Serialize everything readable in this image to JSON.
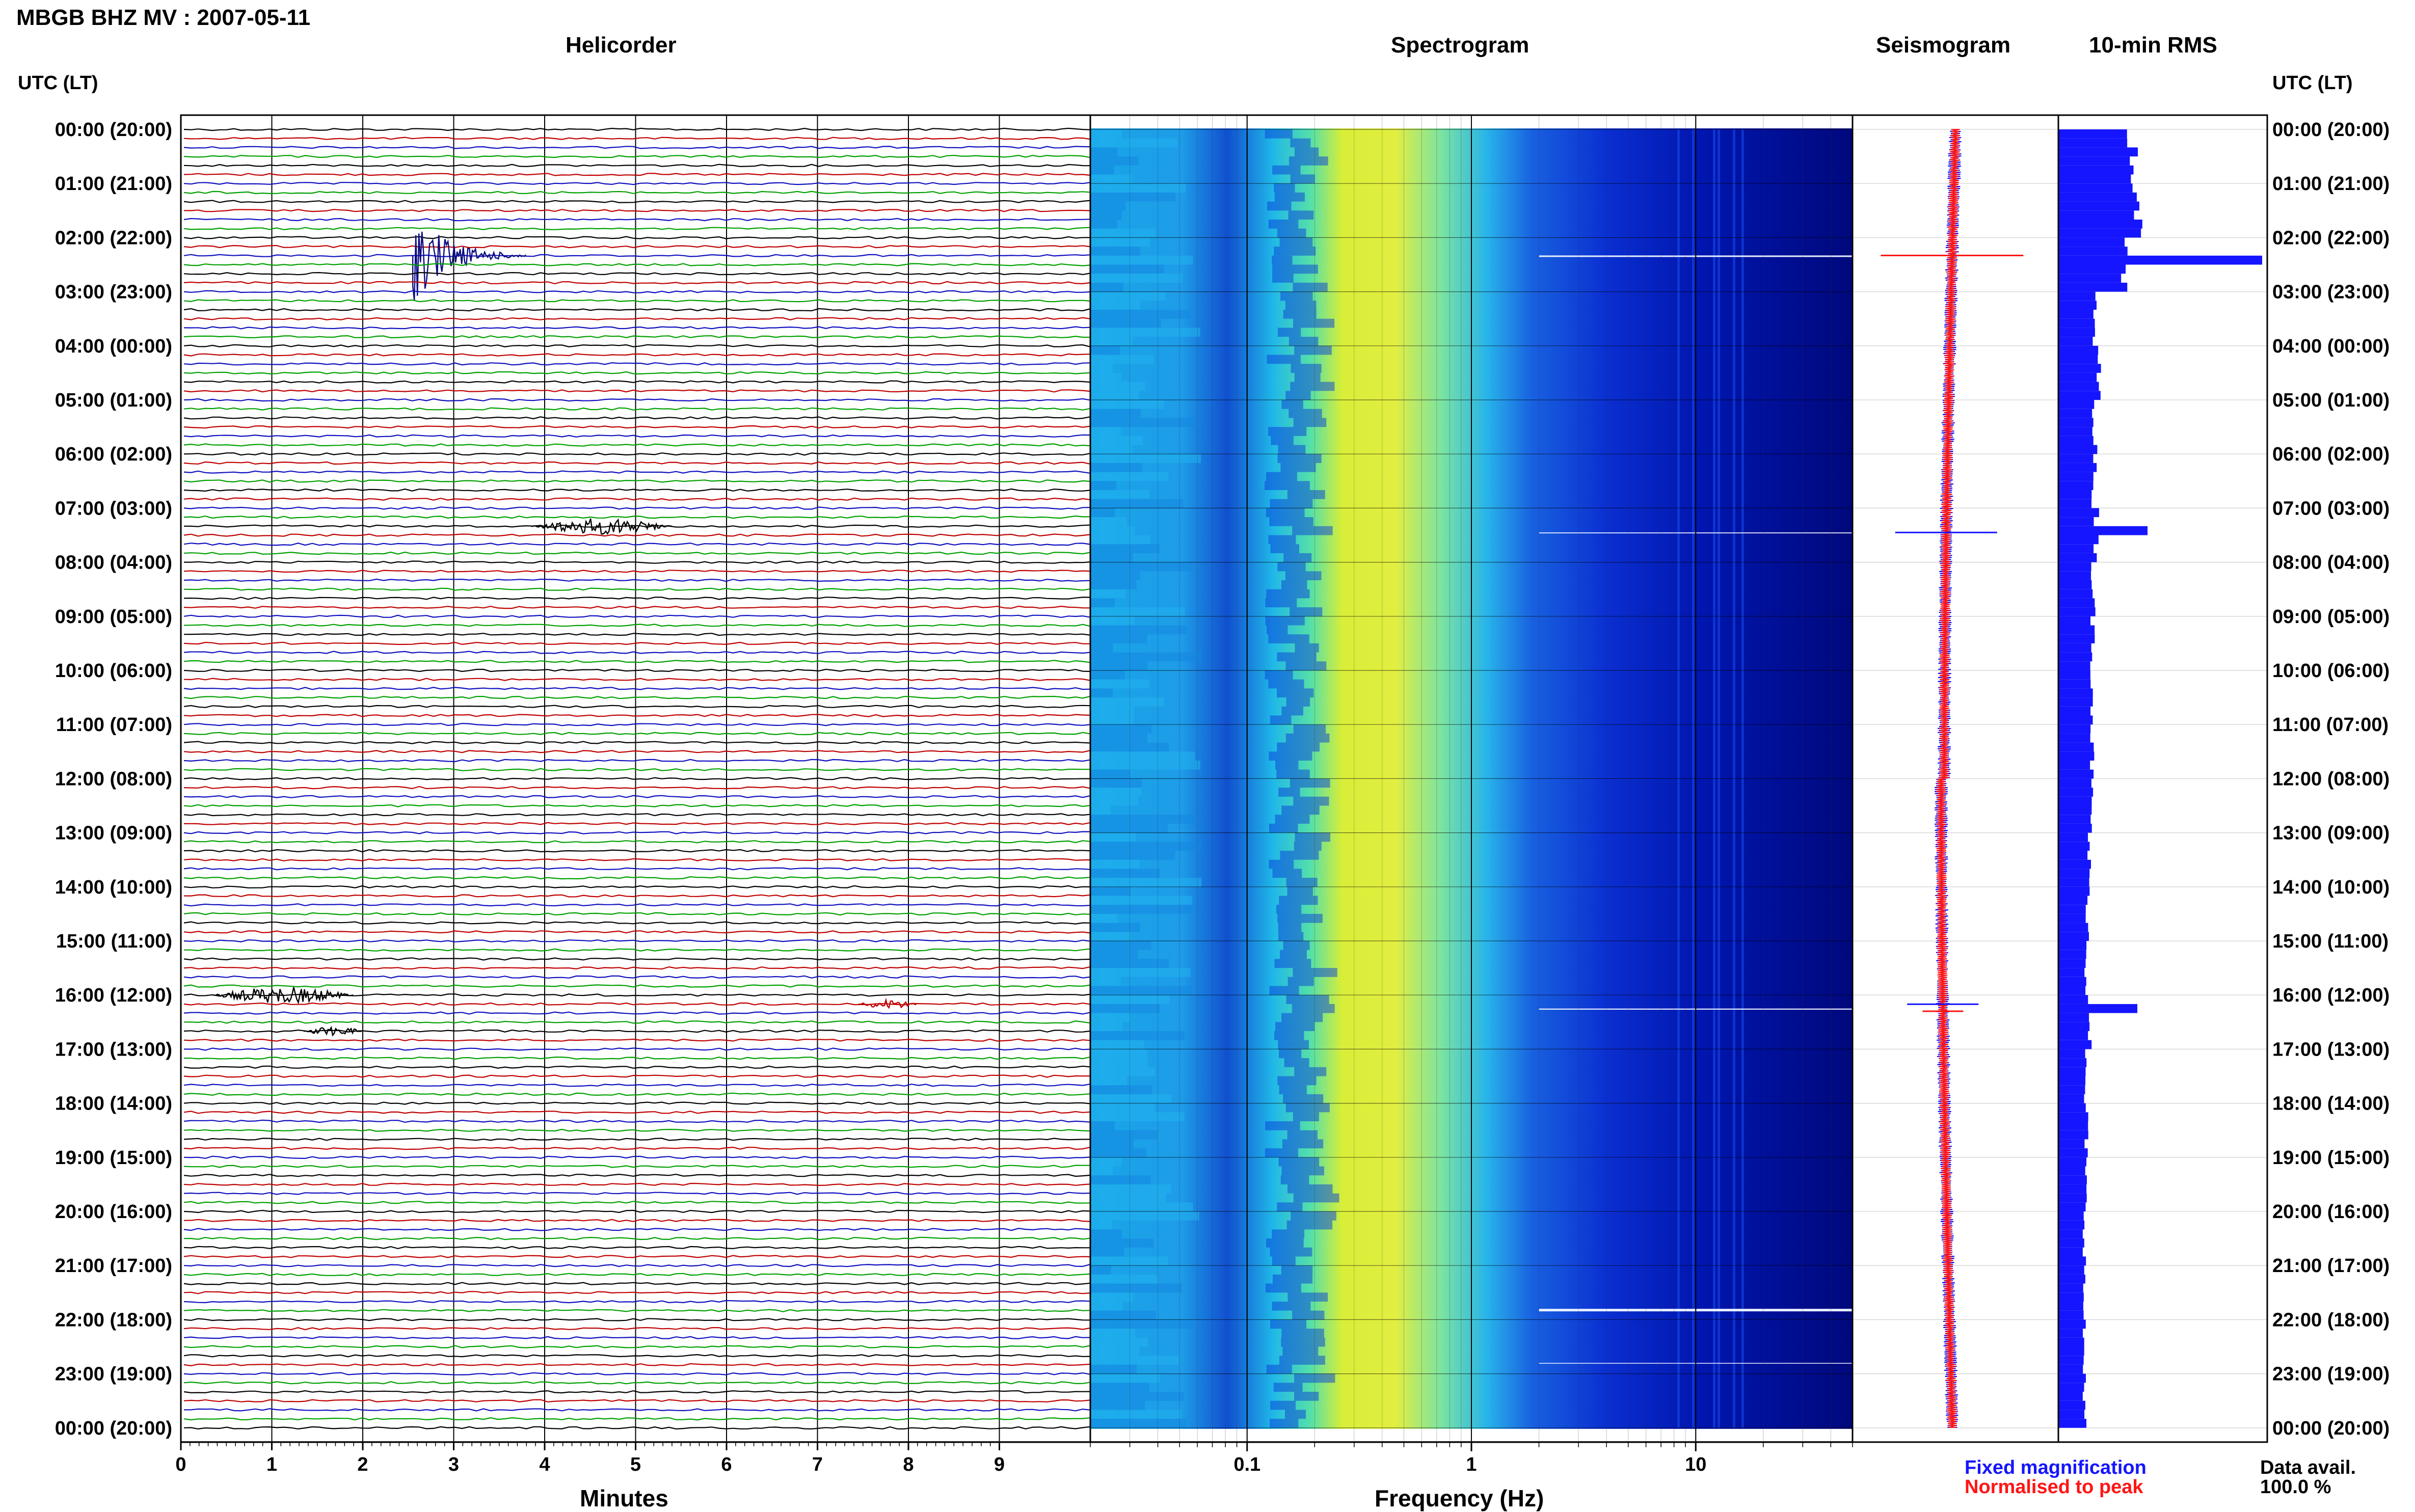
{
  "header": {
    "station_title": "MBGB BHZ MV : 2007-05-11",
    "utc_lt_left": "UTC (LT)",
    "utc_lt_right": "UTC (LT)"
  },
  "panels": {
    "helicorder": "Helicorder",
    "spectrogram": "Spectrogram",
    "seismogram": "Seismogram",
    "rms": "10-min RMS"
  },
  "time_labels": [
    "00:00 (20:00)",
    "01:00 (21:00)",
    "02:00 (22:00)",
    "03:00 (23:00)",
    "04:00 (00:00)",
    "05:00 (01:00)",
    "06:00 (02:00)",
    "07:00 (03:00)",
    "08:00 (04:00)",
    "09:00 (05:00)",
    "10:00 (06:00)",
    "11:00 (07:00)",
    "12:00 (08:00)",
    "13:00 (09:00)",
    "14:00 (10:00)",
    "15:00 (11:00)",
    "16:00 (12:00)",
    "17:00 (13:00)",
    "18:00 (14:00)",
    "19:00 (15:00)",
    "20:00 (16:00)",
    "21:00 (17:00)",
    "22:00 (18:00)",
    "23:00 (19:00)",
    "00:00 (20:00)"
  ],
  "x_axes": {
    "helicorder_label": "Minutes",
    "helicorder_ticks": [
      "0",
      "1",
      "2",
      "3",
      "4",
      "5",
      "6",
      "7",
      "8",
      "9"
    ],
    "spectrogram_label": "Frequency (Hz)",
    "spectrogram_ticks": [
      "0.1",
      "1",
      "10"
    ]
  },
  "legend": {
    "fixed": "Fixed magnification",
    "normalised": "Normalised to peak",
    "fixed_color": "#1515ff",
    "normalised_color": "#ff1515"
  },
  "data_avail": {
    "label": "Data avail.",
    "value": "100.0 %"
  },
  "chart_data": [
    {
      "type": "line",
      "name": "helicorder",
      "title": "Helicorder",
      "xlabel": "Minutes",
      "ylabel": "UTC (LT)",
      "xlim": [
        0,
        10
      ],
      "rows_per_hour": 6,
      "hours": 24,
      "trace_colors": [
        "#000000",
        "#c00000",
        "#1010c0",
        "#00a000"
      ],
      "events": [
        {
          "time": "02:20",
          "minute": 2.7,
          "amplitude": "large"
        },
        {
          "time": "07:20",
          "minute": 4.0,
          "amplitude": "medium"
        },
        {
          "time": "16:00",
          "minute": 0.5,
          "amplitude": "medium"
        },
        {
          "time": "16:10",
          "minute": 7.6,
          "amplitude": "small"
        },
        {
          "time": "16:40",
          "minute": 1.5,
          "amplitude": "small"
        }
      ]
    },
    {
      "type": "heatmap",
      "name": "spectrogram",
      "title": "Spectrogram",
      "xlabel": "Frequency (Hz)",
      "xscale": "log",
      "xlim": [
        0.02,
        50
      ],
      "energy_peak_hz": [
        0.2,
        1.0
      ],
      "colormap": [
        "#00007a",
        "#0020d0",
        "#1aa8f0",
        "#30e0c0",
        "#e8f030"
      ]
    },
    {
      "type": "line",
      "name": "seismogram",
      "title": "Seismogram",
      "series": [
        {
          "name": "Fixed magnification",
          "color": "#1515ff"
        },
        {
          "name": "Normalised to peak",
          "color": "#ff1515"
        }
      ]
    },
    {
      "type": "bar",
      "name": "rms",
      "title": "10-min RMS",
      "orientation": "horizontal",
      "bar_color": "#1515ff",
      "hourly_relative": [
        1.45,
        1.55,
        1.3,
        0.7,
        0.78,
        0.72,
        0.7,
        0.75,
        0.68,
        0.68,
        0.68,
        0.66,
        0.64,
        0.6,
        0.58,
        0.55,
        0.62,
        0.52,
        0.55,
        0.53,
        0.52,
        0.5,
        0.5,
        0.52
      ],
      "peaks": [
        {
          "time": "02:20",
          "relative": 4.0
        },
        {
          "time": "07:20",
          "relative": 1.75
        },
        {
          "time": "16:10",
          "relative": 1.55
        }
      ]
    }
  ]
}
